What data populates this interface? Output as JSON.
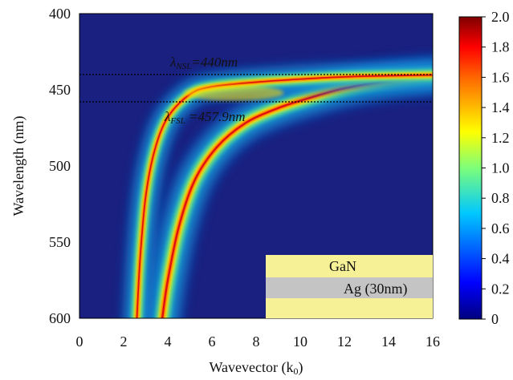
{
  "chart_data": [
    {
      "type": "heatmap",
      "title": "",
      "xlabel": "Wavevector (k",
      "xlabel_sub": "0",
      "xlabel_close": ")",
      "ylabel": "Wavelength (nm)",
      "xlim": [
        0,
        16
      ],
      "ylim": [
        400,
        600
      ],
      "y_inverted": true,
      "x_ticks": [
        "0",
        "2",
        "4",
        "6",
        "8",
        "10",
        "12",
        "14",
        "16"
      ],
      "y_ticks": [
        "400",
        "450",
        "500",
        "550",
        "600"
      ],
      "colorbar": {
        "range": [
          0,
          2.0
        ],
        "ticks": [
          "2.0",
          "1.8",
          "1.6",
          "1.4",
          "1.2",
          "1.0",
          "0.8",
          "0.6",
          "0.4",
          "0.2",
          "0"
        ],
        "colormap": "jet"
      },
      "grid": false,
      "dispersion_branches": [
        {
          "name": "NSL",
          "points": [
            [
              2.6,
              600
            ],
            [
              2.75,
              560
            ],
            [
              3.0,
              520
            ],
            [
              3.4,
              490
            ],
            [
              4.0,
              468
            ],
            [
              5.0,
              453
            ],
            [
              6.0,
              448
            ],
            [
              8.0,
              445
            ],
            [
              10.0,
              443
            ],
            [
              12.0,
              441.5
            ],
            [
              14.0,
              440.8
            ],
            [
              16.0,
              440.3
            ]
          ]
        },
        {
          "name": "FSL",
          "points": [
            [
              3.75,
              600
            ],
            [
              4.0,
              575
            ],
            [
              4.5,
              540
            ],
            [
              5.2,
              510
            ],
            [
              6.2,
              488
            ],
            [
              7.5,
              472
            ],
            [
              9.0,
              462
            ],
            [
              10.5,
              455
            ],
            [
              12.0,
              449
            ],
            [
              14.0,
              444
            ],
            [
              16.0,
              441
            ]
          ]
        }
      ],
      "reference_lines": [
        {
          "wavelength": 440,
          "label_main": "λ",
          "label_sub": "NSL",
          "label_value": "=440nm"
        },
        {
          "wavelength": 457.9,
          "label_main": "λ",
          "label_sub": "FSL",
          "label_value": " =457.9nm"
        }
      ],
      "inset_layers": [
        {
          "label": "GaN",
          "color": "#f6f096"
        },
        {
          "label": "Ag (30nm)",
          "color": "#c4c4c4"
        },
        {
          "label": "",
          "color": "#f6f096"
        }
      ]
    }
  ]
}
